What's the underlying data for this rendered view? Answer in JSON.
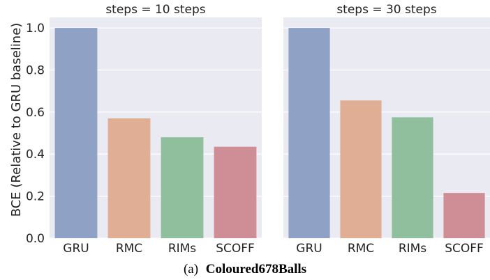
{
  "chart_data": {
    "type": "bar",
    "ylabel": "BCE (Relative to GRU baseline)",
    "yticks": [
      "0.0",
      "0.2",
      "0.4",
      "0.6",
      "0.8",
      "1.0"
    ],
    "ylim": [
      0,
      1.0
    ],
    "grid": true,
    "colors": [
      "#8fa2c6",
      "#dfae95",
      "#8fbf9d",
      "#cf8d95"
    ],
    "panels": [
      {
        "title": "steps = 10 steps",
        "categories": [
          "GRU",
          "RMC",
          "RIMs",
          "SCOFF"
        ],
        "values": [
          1.0,
          0.57,
          0.48,
          0.435
        ]
      },
      {
        "title": "steps = 30 steps",
        "categories": [
          "GRU",
          "RMC",
          "RIMs",
          "SCOFF"
        ],
        "values": [
          1.0,
          0.655,
          0.575,
          0.215
        ]
      }
    ]
  },
  "caption": {
    "prefix": "(a)",
    "name": "Coloured678Balls"
  }
}
